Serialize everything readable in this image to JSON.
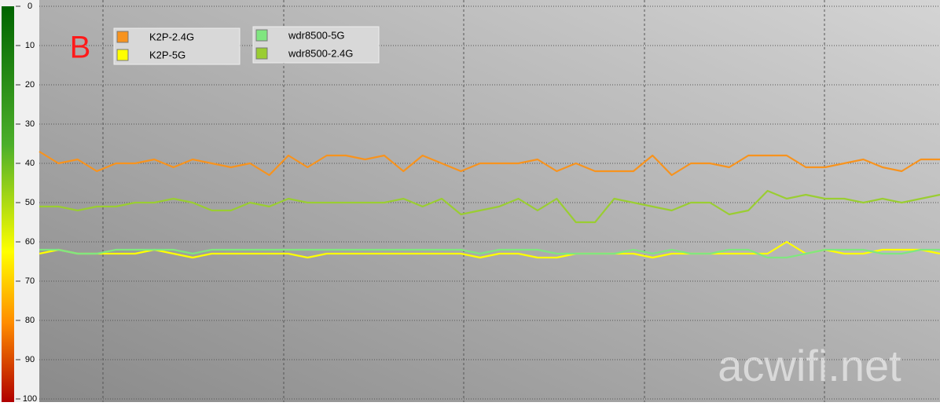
{
  "chart_data": {
    "type": "line",
    "annotation": "B",
    "watermark": "acwifi.net",
    "ylim": [
      100,
      0
    ],
    "yticks": [
      0,
      10,
      20,
      30,
      40,
      50,
      60,
      70,
      80,
      90,
      100
    ],
    "grid": true,
    "series": [
      {
        "name": "K2P-2.4G",
        "color": "#f7931e",
        "values": [
          37,
          40,
          39,
          42,
          40,
          40,
          39,
          41,
          39,
          40,
          41,
          40,
          43,
          38,
          41,
          38,
          38,
          39,
          38,
          42,
          38,
          40,
          42,
          40,
          40,
          40,
          39,
          42,
          40,
          42,
          42,
          42,
          38,
          43,
          40,
          40,
          41,
          38,
          38,
          38,
          41,
          41,
          40,
          39,
          41,
          42,
          39,
          39
        ]
      },
      {
        "name": "K2P-5G",
        "color": "#ffff00",
        "values": [
          63,
          62,
          63,
          63,
          63,
          63,
          62,
          63,
          64,
          63,
          63,
          63,
          63,
          63,
          64,
          63,
          63,
          63,
          63,
          63,
          63,
          63,
          63,
          64,
          63,
          63,
          64,
          64,
          63,
          63,
          63,
          63,
          64,
          63,
          63,
          63,
          63,
          63,
          63,
          60,
          63,
          62,
          63,
          63,
          62,
          62,
          62,
          63
        ]
      },
      {
        "name": "wdr8500-5G",
        "color": "#80e680",
        "values": [
          62,
          62,
          63,
          63,
          62,
          62,
          62,
          62,
          63,
          62,
          62,
          62,
          62,
          62,
          62,
          62,
          62,
          62,
          62,
          62,
          62,
          62,
          62,
          63,
          62,
          62,
          62,
          63,
          63,
          63,
          63,
          62,
          63,
          62,
          63,
          63,
          62,
          62,
          64,
          64,
          63,
          62,
          62,
          62,
          63,
          63,
          62,
          62
        ]
      },
      {
        "name": "wdr8500-2.4G",
        "color": "#9acd32",
        "values": [
          51,
          51,
          52,
          51,
          51,
          50,
          50,
          49,
          50,
          52,
          52,
          50,
          51,
          49,
          50,
          50,
          50,
          50,
          50,
          49,
          51,
          49,
          53,
          52,
          51,
          49,
          52,
          49,
          55,
          55,
          49,
          50,
          51,
          52,
          50,
          50,
          53,
          52,
          47,
          49,
          48,
          49,
          49,
          50,
          49,
          50,
          49,
          48
        ]
      }
    ]
  }
}
